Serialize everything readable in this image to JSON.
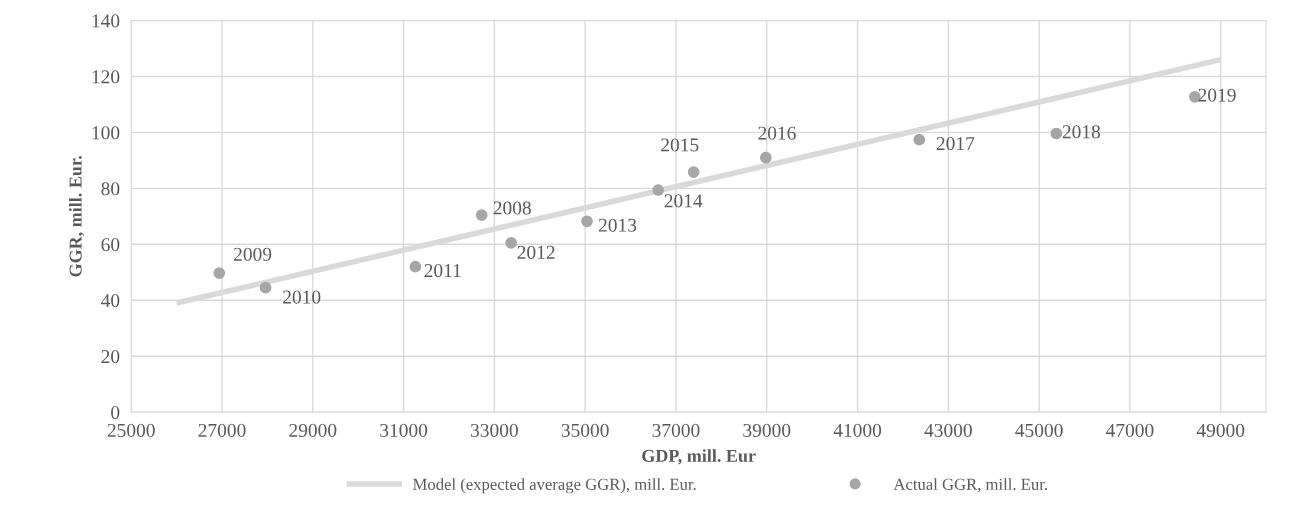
{
  "chart_data": {
    "type": "scatter",
    "xlabel": "GDP, mill. Eur",
    "ylabel": "GGR, mill. Eur.",
    "xlim": [
      25000,
      50000
    ],
    "xticks": [
      25000,
      27000,
      29000,
      31000,
      33000,
      35000,
      37000,
      39000,
      41000,
      43000,
      45000,
      47000,
      49000
    ],
    "ylim": [
      0,
      140
    ],
    "yticks": [
      0,
      20,
      40,
      60,
      80,
      100,
      120,
      140
    ],
    "grid": true,
    "legend": "bottom",
    "series": [
      {
        "name": "Model (expected average GGR), mill. Eur.",
        "type": "line",
        "color": "#d9d9d9",
        "marker": "none",
        "x": [
          26000,
          49000
        ],
        "values": [
          39,
          126
        ]
      },
      {
        "name": "Actual GGR, mill. Eur.",
        "color": "#a6a6a6",
        "marker": "circle",
        "x": [
          32720,
          26940,
          27960,
          31260,
          33370,
          35040,
          36610,
          37390,
          38980,
          42360,
          45380,
          48430
        ],
        "values": [
          70.4,
          49.7,
          44.5,
          52,
          60.5,
          68.2,
          79.4,
          85.8,
          91,
          97.4,
          99.6,
          112.7
        ]
      }
    ],
    "annotations": [
      {
        "text": "2008",
        "x": 32720,
        "y": 70.4
      },
      {
        "text": "2009",
        "x": 26940,
        "y": 49.7
      },
      {
        "text": "2010",
        "x": 27960,
        "y": 44.5
      },
      {
        "text": "2011",
        "x": 31260,
        "y": 52
      },
      {
        "text": "2012",
        "x": 33370,
        "y": 60.5
      },
      {
        "text": "2013",
        "x": 35040,
        "y": 68.2
      },
      {
        "text": "2014",
        "x": 36610,
        "y": 79.4
      },
      {
        "text": "2015",
        "x": 37390,
        "y": 85.8
      },
      {
        "text": "2016",
        "x": 38980,
        "y": 91
      },
      {
        "text": "2017",
        "x": 42360,
        "y": 97.4
      },
      {
        "text": "2018",
        "x": 45380,
        "y": 99.6
      },
      {
        "text": "2019",
        "x": 48430,
        "y": 112.7
      }
    ]
  }
}
